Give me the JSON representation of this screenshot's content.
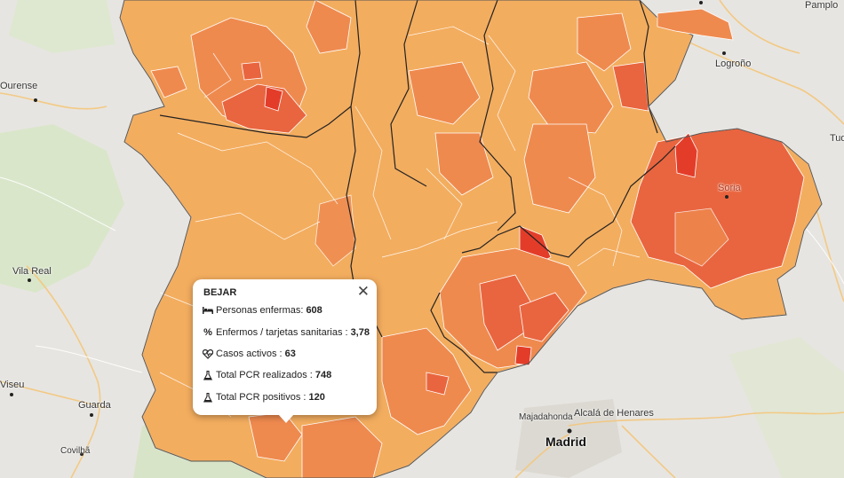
{
  "places": {
    "ourense": "Ourense",
    "vila_real": "Vila Real",
    "viseu": "Viseu",
    "guarda": "Guarda",
    "covilha": "Covilhã",
    "logrono": "Logroño",
    "pamplona": "Pamplo",
    "tudela": "Tude",
    "soria": "Soria",
    "majadahonda": "Majadahonda",
    "alcala": "Alcalá de Henares",
    "madrid": "Madrid"
  },
  "popup": {
    "title": "BEJAR",
    "close": "✕",
    "rows": [
      {
        "label": "Personas enfermas:",
        "value": "608",
        "icon": "bed-icon"
      },
      {
        "label": "Enfermos / tarjetas sanitarias :",
        "value": "3,78",
        "icon": "percent-icon"
      },
      {
        "label": "Casos activos :",
        "value": "63",
        "icon": "heartbeat-icon"
      },
      {
        "label": "Total PCR realizados :",
        "value": "748",
        "icon": "flask-icon"
      },
      {
        "label": "Total PCR positivos :",
        "value": "120",
        "icon": "flask-icon"
      }
    ]
  },
  "colors": {
    "base": "#f3ad5f",
    "mid": "#ef8a4f",
    "high": "#e9653f",
    "max": "#e33d2a"
  }
}
